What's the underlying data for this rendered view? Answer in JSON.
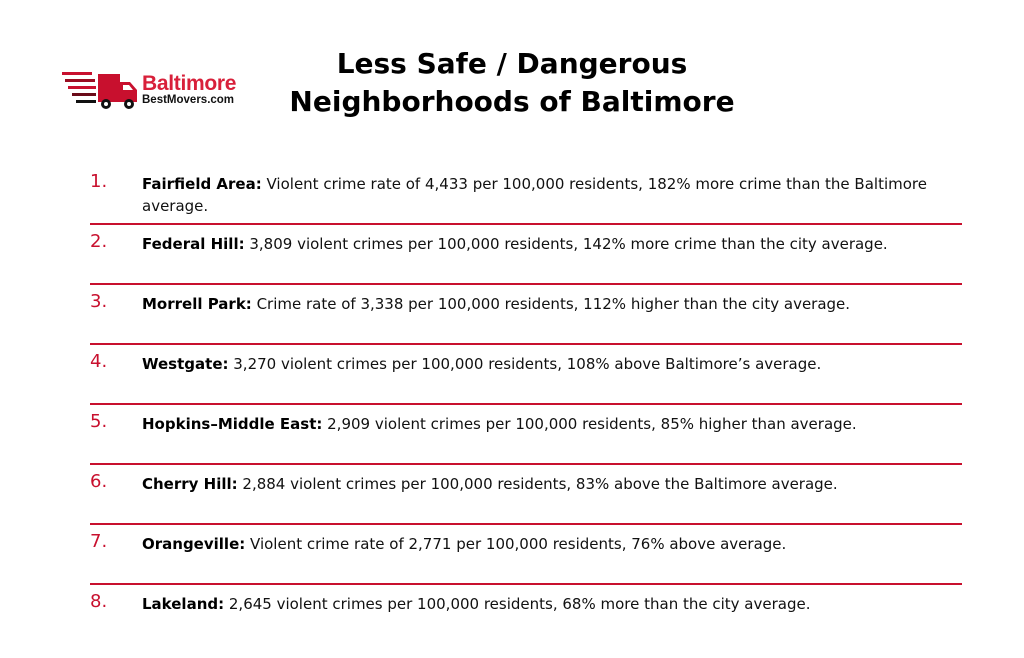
{
  "logo": {
    "name": "Baltimore",
    "subname": "BestMovers.com"
  },
  "title": {
    "line1": "Less Safe / Dangerous",
    "line2": "Neighborhoods of Baltimore"
  },
  "colors": {
    "accent": "#c8102e",
    "brand": "#d8203a",
    "text": "#111111"
  },
  "items": [
    {
      "number": "1.",
      "name": "Fairfield Area:",
      "description": " Violent crime rate of 4,433 per 100,000 residents, 182% more crime than the Baltimore average."
    },
    {
      "number": "2.",
      "name": "Federal Hill:",
      "description": " 3,809 violent crimes per 100,000 residents, 142% more crime than the city average."
    },
    {
      "number": "3.",
      "name": "Morrell Park:",
      "description": " Crime rate of 3,338 per 100,000 residents, 112% higher than the city average."
    },
    {
      "number": "4.",
      "name": "Westgate:",
      "description": " 3,270 violent crimes per 100,000 residents, 108% above Baltimore’s average."
    },
    {
      "number": "5.",
      "name": "Hopkins–Middle East:",
      "description": " 2,909 violent crimes per 100,000 residents, 85% higher than average."
    },
    {
      "number": "6.",
      "name": "Cherry Hill:",
      "description": " 2,884 violent crimes per 100,000 residents, 83% above the Baltimore average."
    },
    {
      "number": "7.",
      "name": "Orangeville:",
      "description": " Violent crime rate of 2,771 per 100,000 residents, 76% above average."
    },
    {
      "number": "8.",
      "name": "Lakeland:",
      "description": " 2,645 violent crimes per 100,000 residents, 68% more than the city average."
    }
  ]
}
